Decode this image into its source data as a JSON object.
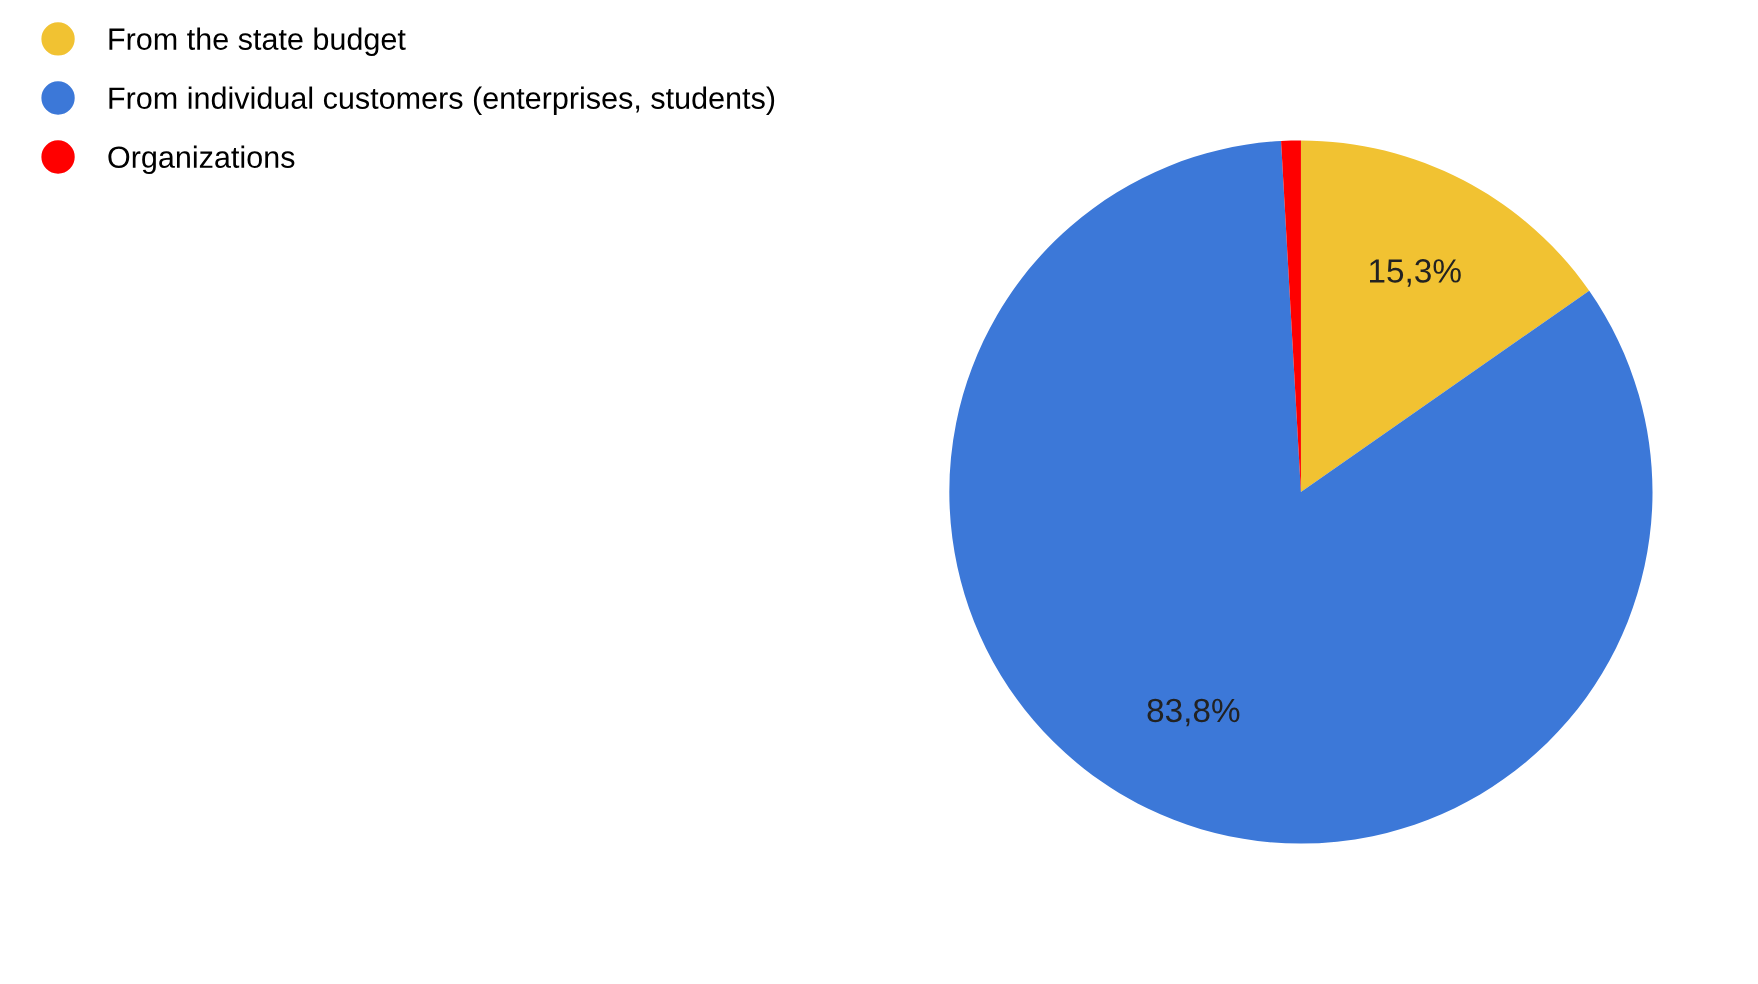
{
  "chart_data": {
    "type": "pie",
    "categories": [
      "From the state budget",
      "From individual customers (enterprises, students)",
      "Organizations"
    ],
    "values": [
      15.3,
      83.8,
      0.9
    ],
    "colors": [
      "#f1c232",
      "#3c78d8",
      "#ff0000"
    ],
    "value_labels": [
      "15,3%",
      "83,8%",
      null
    ],
    "legend": "top left"
  }
}
